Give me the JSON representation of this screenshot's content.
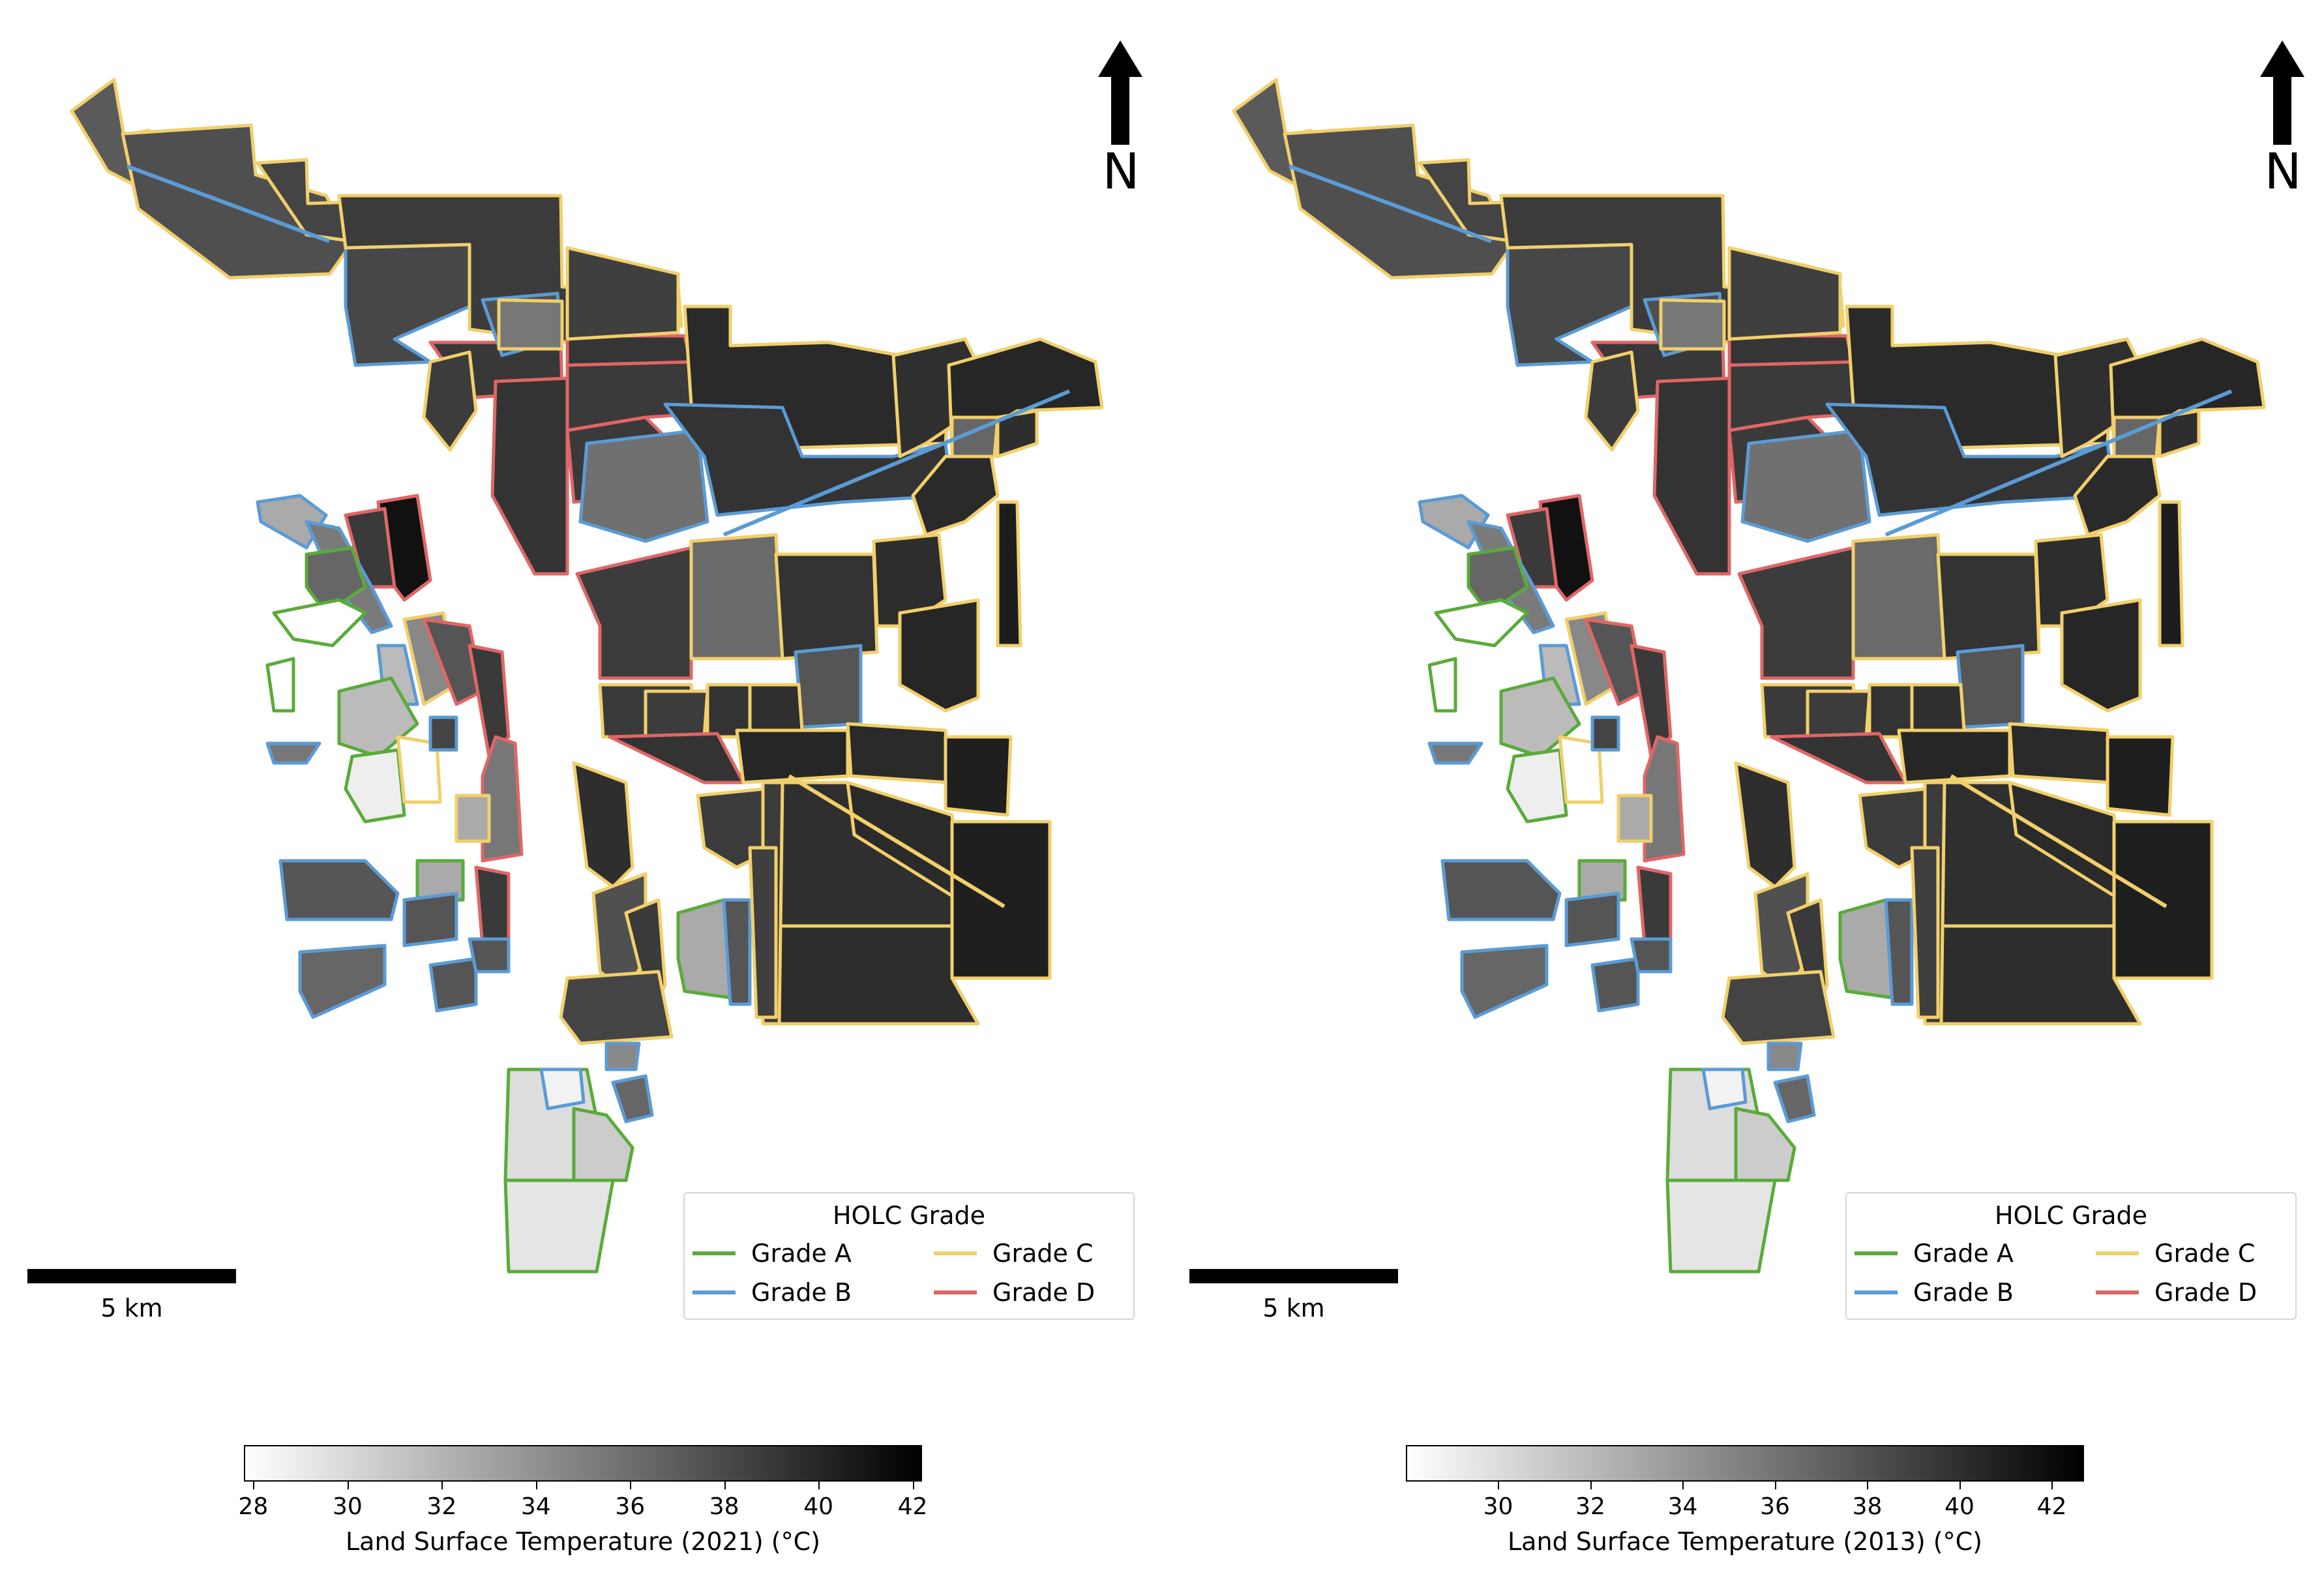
{
  "maps": [
    {
      "id": "lst-2021",
      "legend": {
        "title": "HOLC Grade",
        "items": [
          {
            "label": "Grade A",
            "color": "#5aab3a"
          },
          {
            "label": "Grade B",
            "color": "#5b9bd5"
          },
          {
            "label": "Grade C",
            "color": "#f2cf6b"
          },
          {
            "label": "Grade D",
            "color": "#e06666"
          }
        ]
      },
      "north_label": "N",
      "scale_label": "5 km",
      "colorbar": {
        "label": "Land Surface Temperature (2021) (°C)",
        "ticks": [
          "28",
          "30",
          "32",
          "34",
          "36",
          "38",
          "40",
          "42"
        ],
        "tick_values": [
          28,
          30,
          32,
          34,
          36,
          38,
          40,
          42
        ],
        "min": 27.8,
        "max": 42.2,
        "colormap": "Greys"
      }
    },
    {
      "id": "lst-2013",
      "legend": {
        "title": "HOLC Grade",
        "items": [
          {
            "label": "Grade A",
            "color": "#5aab3a"
          },
          {
            "label": "Grade B",
            "color": "#5b9bd5"
          },
          {
            "label": "Grade C",
            "color": "#f2cf6b"
          },
          {
            "label": "Grade D",
            "color": "#e06666"
          }
        ]
      },
      "north_label": "N",
      "scale_label": "5 km",
      "colorbar": {
        "label": "Land Surface Temperature (2013) (°C)",
        "ticks": [
          "30",
          "32",
          "34",
          "36",
          "38",
          "40",
          "42"
        ],
        "tick_values": [
          30,
          32,
          34,
          36,
          38,
          40,
          42
        ],
        "min": 28.0,
        "max": 42.7,
        "colormap": "Greys"
      }
    }
  ]
}
